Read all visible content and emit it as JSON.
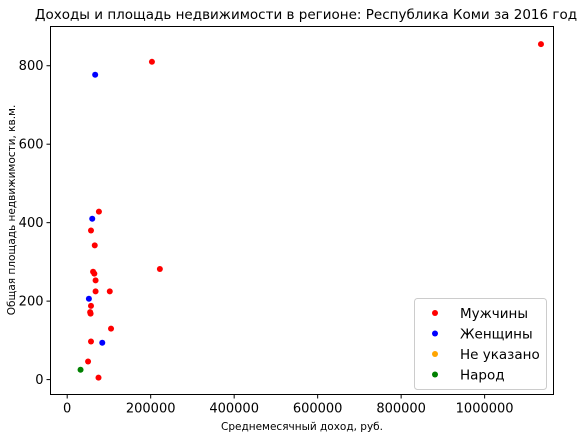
{
  "chart_data": {
    "type": "scatter",
    "title": "Доходы и площадь недвижимости в регионе: Республика Коми за 2016 год",
    "xlabel": "Среднемесячный доход, руб.",
    "ylabel": "Общая площадь недвижимости, кв.м.",
    "xlim": [
      -40000,
      1165000
    ],
    "ylim": [
      -38,
      900
    ],
    "xticks": [
      0,
      200000,
      400000,
      600000,
      800000,
      1000000
    ],
    "xtick_labels": [
      "0",
      "200000",
      "400000",
      "600000",
      "800000",
      "1000000"
    ],
    "yticks": [
      0,
      200,
      400,
      600,
      800
    ],
    "ytick_labels": [
      "0",
      "200",
      "400",
      "600",
      "800"
    ],
    "grid": false,
    "legend_position": "bottom-right",
    "series": [
      {
        "name": "Мужчины",
        "color": "#ff0000",
        "points": [
          [
            1135000,
            855
          ],
          [
            203000,
            810
          ],
          [
            76000,
            428
          ],
          [
            57000,
            380
          ],
          [
            66000,
            342
          ],
          [
            222000,
            282
          ],
          [
            62000,
            275
          ],
          [
            65000,
            270
          ],
          [
            68000,
            253
          ],
          [
            68000,
            225
          ],
          [
            102000,
            225
          ],
          [
            57000,
            188
          ],
          [
            55000,
            172
          ],
          [
            56000,
            168
          ],
          [
            105000,
            130
          ],
          [
            57000,
            97
          ],
          [
            50000,
            46
          ],
          [
            75000,
            5
          ]
        ]
      },
      {
        "name": "Женщины",
        "color": "#0000ff",
        "points": [
          [
            67000,
            777
          ],
          [
            60000,
            410
          ],
          [
            52000,
            206
          ],
          [
            84000,
            94
          ]
        ]
      },
      {
        "name": "Не указано",
        "color": "#ffa500",
        "points": []
      },
      {
        "name": "Народ",
        "color": "#008000",
        "points": [
          [
            32000,
            25
          ]
        ]
      }
    ]
  }
}
